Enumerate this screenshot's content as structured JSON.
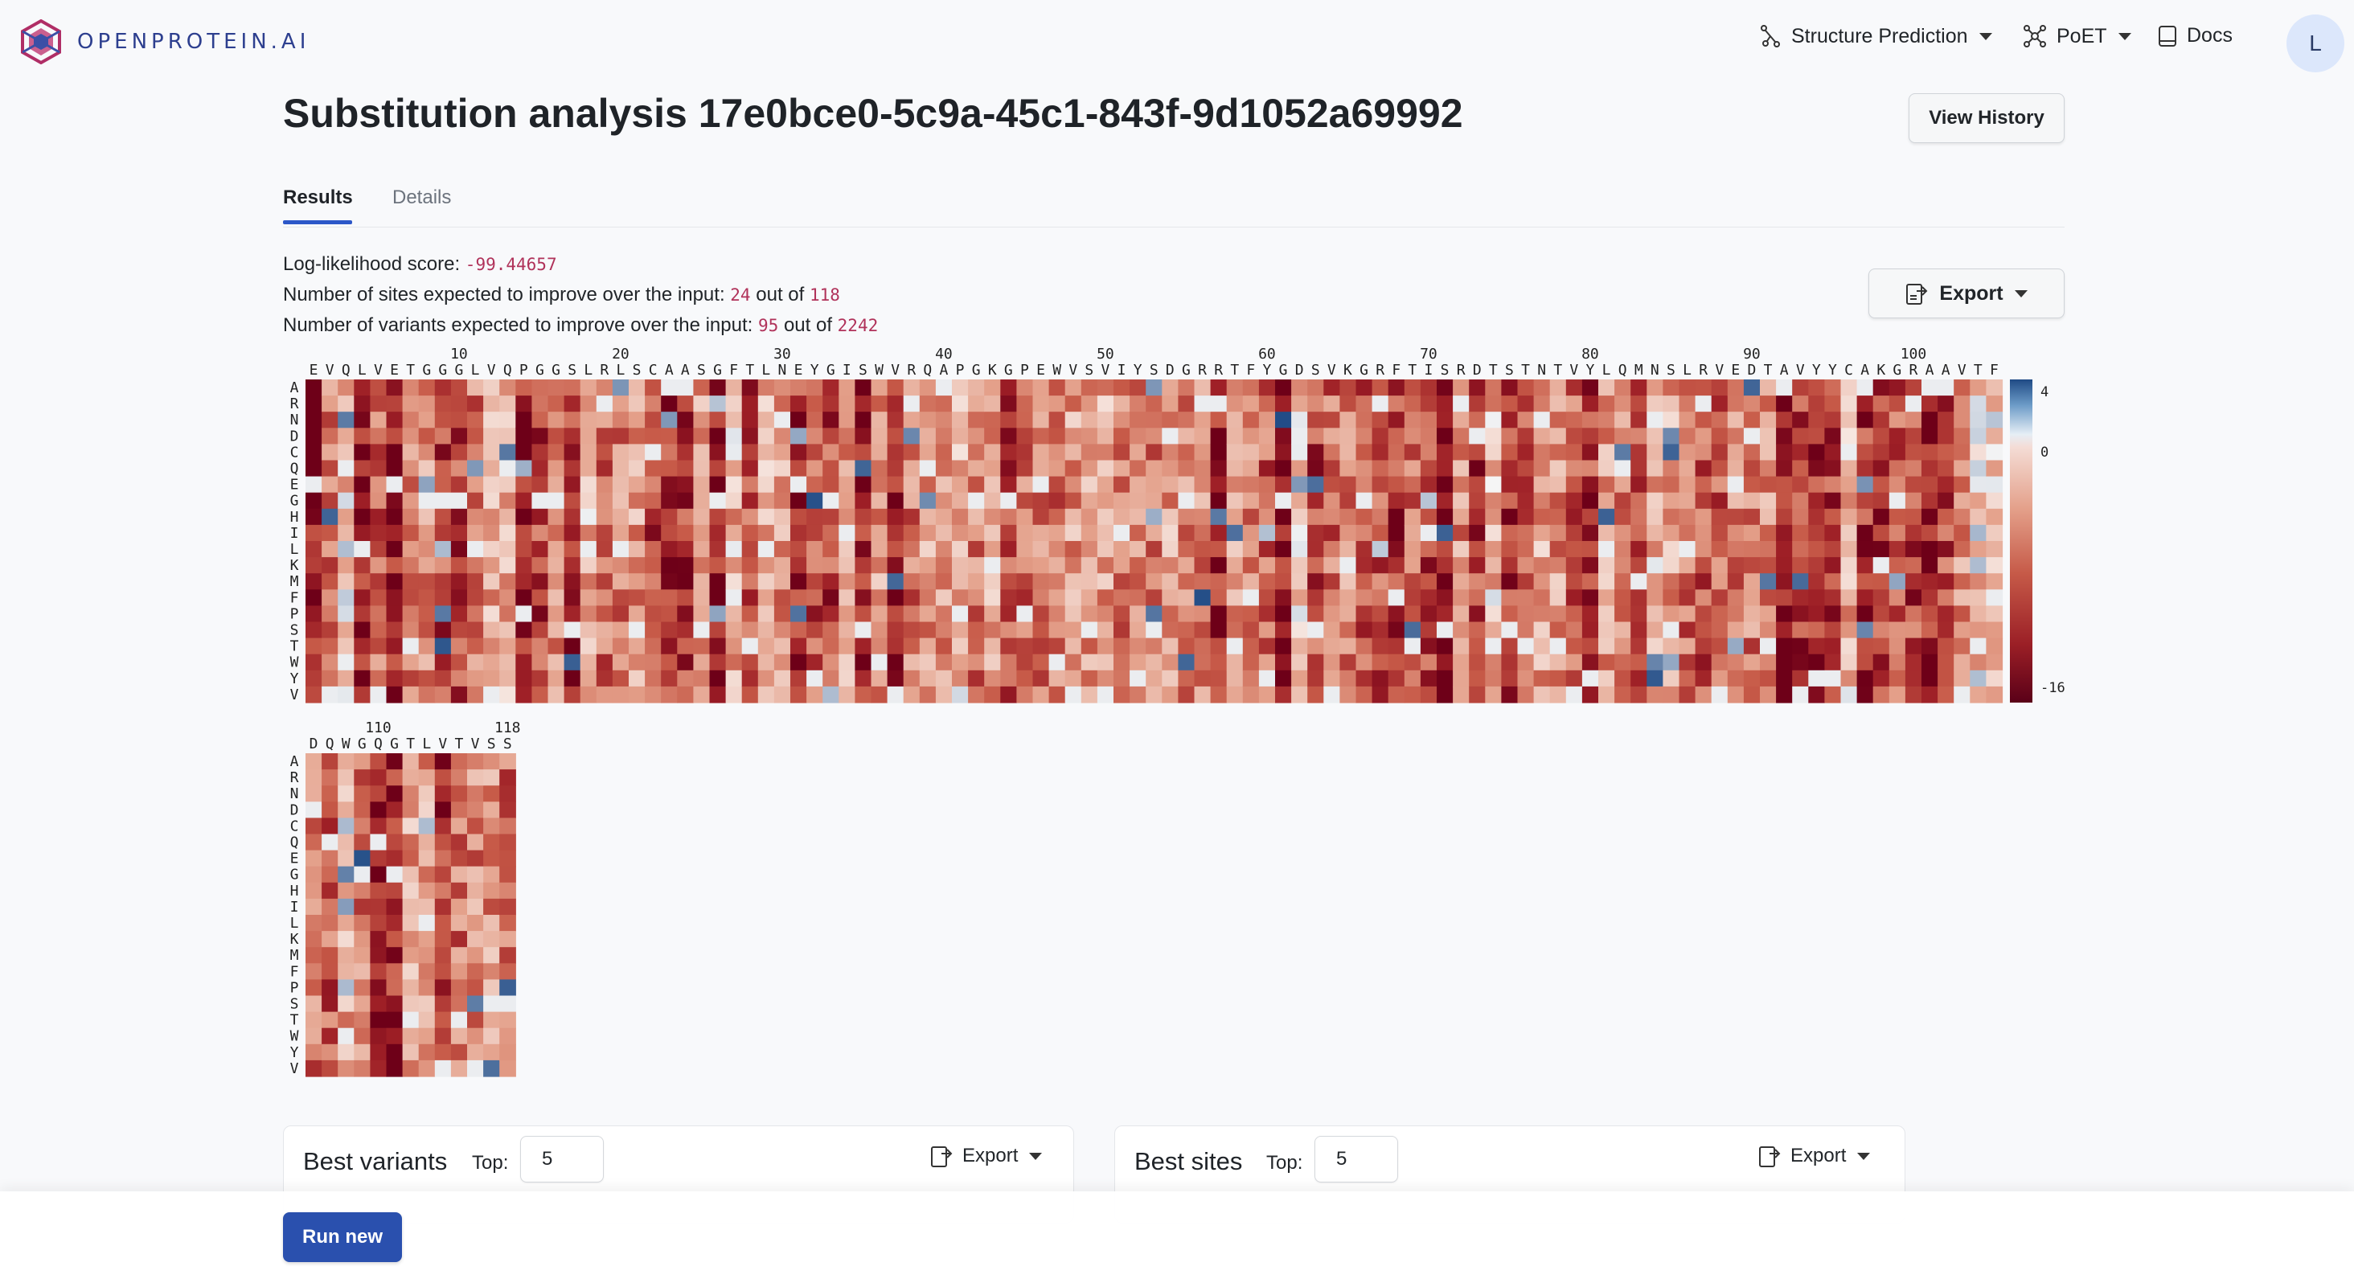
{
  "header": {
    "brand": "OPENPROTEIN.AI",
    "nav": [
      {
        "label": "Structure Prediction",
        "icon": "molecule-icon",
        "has_dropdown": true
      },
      {
        "label": "PoET",
        "icon": "network-icon",
        "has_dropdown": true
      },
      {
        "label": "Docs",
        "icon": "book-icon",
        "has_dropdown": false
      }
    ],
    "avatar_initial": "L"
  },
  "page": {
    "title": "Substitution analysis 17e0bce0-5c9a-45c1-843f-9d1052a69992",
    "view_history": "View History",
    "tabs": [
      {
        "label": "Results",
        "active": true
      },
      {
        "label": "Details",
        "active": false
      }
    ]
  },
  "stats": {
    "ll_label": "Log-likelihood score:",
    "ll_value": "-99.44657",
    "sites_label": "Number of sites expected to improve over the input:",
    "sites_value": "24",
    "sites_total": "118",
    "variants_label": "Number of variants expected to improve over the input:",
    "variants_value": "95",
    "variants_total": "2242",
    "out_of": "out of",
    "export": "Export"
  },
  "heatmap": {
    "sequence": "EVQLVETGGGLVQPGGSLRLSCAASGFTLNEYGISWVRQAPGKGPEWVSVIYSDGRRTFYGDSVKGRFTISRDTSTNTVYLQMNSLRVEDTAVYYCAKGRAAVTFDQWGQGTLVTVSS",
    "amino_acids": [
      "A",
      "R",
      "N",
      "D",
      "C",
      "Q",
      "E",
      "G",
      "H",
      "I",
      "L",
      "K",
      "M",
      "F",
      "P",
      "S",
      "T",
      "W",
      "Y",
      "V"
    ],
    "position_labels": [
      "10",
      "20",
      "30",
      "40",
      "50",
      "60",
      "70",
      "80",
      "90",
      "100",
      "110",
      "118"
    ],
    "colorbar_labels": [
      "4",
      "0",
      "-16"
    ],
    "colorbar_colors": {
      "positive": "#1f4a85",
      "neutral": "#f4f4f4",
      "negative": "#5a0018"
    }
  },
  "best_variants": {
    "title": "Best variants",
    "top_label": "Top:",
    "top_value": "5",
    "export": "Export"
  },
  "best_sites": {
    "title": "Best sites",
    "top_label": "Top:",
    "top_value": "5",
    "export": "Export"
  },
  "footer": {
    "run_new": "Run new"
  }
}
